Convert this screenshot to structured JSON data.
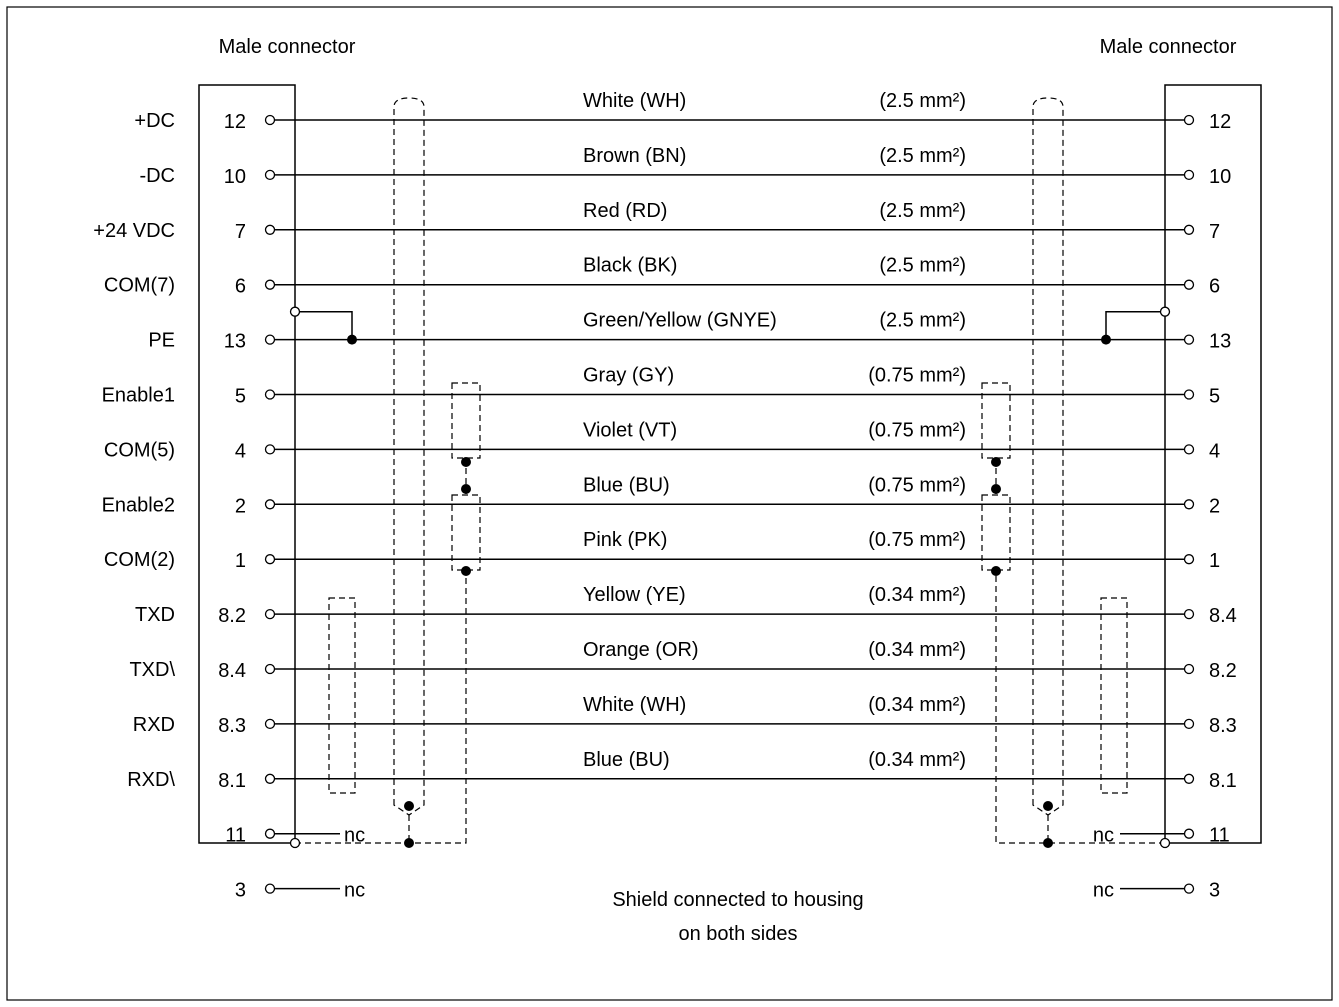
{
  "left_header": "Male connector",
  "right_header": "Male connector",
  "wires": [
    {
      "signal": "+DC",
      "left_pin": "12",
      "right_pin": "12",
      "color": "White (WH)",
      "gauge": "(2.5 mm²)"
    },
    {
      "signal": "-DC",
      "left_pin": "10",
      "right_pin": "10",
      "color": "Brown (BN)",
      "gauge": "(2.5 mm²)"
    },
    {
      "signal": "+24 VDC",
      "left_pin": "7",
      "right_pin": "7",
      "color": "Red (RD)",
      "gauge": "(2.5 mm²)"
    },
    {
      "signal": "COM(7)",
      "left_pin": "6",
      "right_pin": "6",
      "color": "Black (BK)",
      "gauge": "(2.5 mm²)"
    },
    {
      "signal": "PE",
      "left_pin": "13",
      "right_pin": "13",
      "color": "Green/Yellow (GNYE)",
      "gauge": "(2.5 mm²)"
    },
    {
      "signal": "Enable1",
      "left_pin": "5",
      "right_pin": "5",
      "color": "Gray (GY)",
      "gauge": "(0.75 mm²)"
    },
    {
      "signal": "COM(5)",
      "left_pin": "4",
      "right_pin": "4",
      "color": "Violet (VT)",
      "gauge": "(0.75 mm²)"
    },
    {
      "signal": "Enable2",
      "left_pin": "2",
      "right_pin": "2",
      "color": "Blue (BU)",
      "gauge": "(0.75 mm²)"
    },
    {
      "signal": "COM(2)",
      "left_pin": "1",
      "right_pin": "1",
      "color": "Pink (PK)",
      "gauge": "(0.75 mm²)"
    },
    {
      "signal": "TXD",
      "left_pin": "8.2",
      "right_pin": "8.4",
      "color": "Yellow (YE)",
      "gauge": "(0.34 mm²)"
    },
    {
      "signal": "TXD\\",
      "left_pin": "8.4",
      "right_pin": "8.2",
      "color": "Orange (OR)",
      "gauge": "(0.34 mm²)"
    },
    {
      "signal": "RXD",
      "left_pin": "8.3",
      "right_pin": "8.3",
      "color": "White (WH)",
      "gauge": "(0.34 mm²)"
    },
    {
      "signal": "RXD\\",
      "left_pin": "8.1",
      "right_pin": "8.1",
      "color": "Blue (BU)",
      "gauge": "(0.34 mm²)"
    }
  ],
  "unconnected": [
    {
      "left_pin": "11",
      "right_pin": "11",
      "label": "nc"
    },
    {
      "left_pin": "3",
      "right_pin": "3",
      "label": "nc"
    }
  ],
  "shield_note": [
    "Shield connected to housing",
    "on both sides"
  ]
}
